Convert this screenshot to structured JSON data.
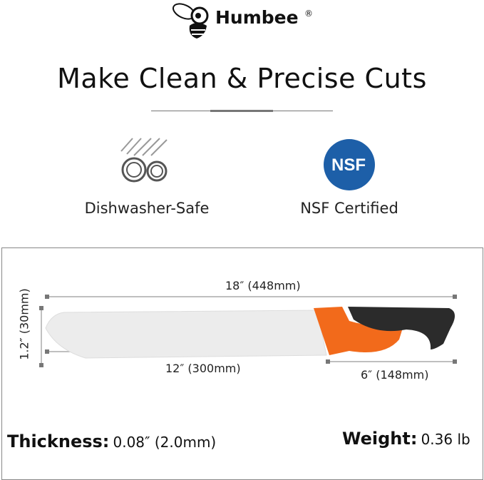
{
  "brand": {
    "name": "Humbee",
    "registered": "®",
    "logo_icon": "bee-icon"
  },
  "title": "Make Clean & Precise Cuts",
  "features": [
    {
      "label": "Dishwasher-Safe",
      "icon": "dishwasher-plates-icon"
    },
    {
      "label": "NSF Certified",
      "icon": "nsf-badge-icon",
      "badge_text": "NSF",
      "color": "#1d5fa8"
    }
  ],
  "dimensions": {
    "total_length": "18″ (448mm)",
    "blade_length": "12″ (300mm)",
    "handle_length": "6″ (148mm)",
    "blade_height": "1.2″ (30mm)"
  },
  "specs": {
    "thickness_label": "Thickness:",
    "thickness_value": "0.08″ (2.0mm)",
    "weight_label": "Weight:",
    "weight_value": "0.36 lb"
  },
  "colors": {
    "handle_orange": "#f26a1b",
    "handle_black": "#2b2b2b",
    "dim_line": "#888888"
  }
}
